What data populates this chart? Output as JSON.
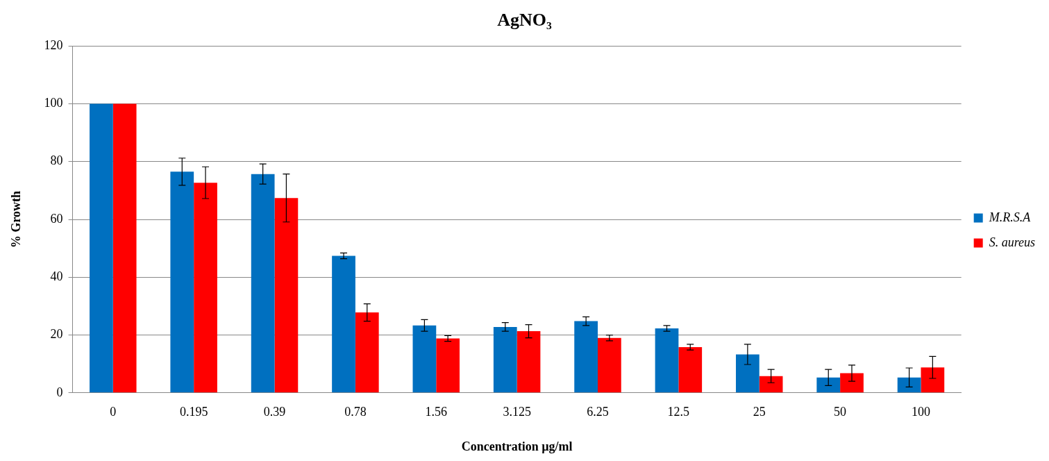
{
  "chart_data": {
    "type": "bar",
    "title": "AgNO₃",
    "xlabel": "Concentration µg/ml",
    "ylabel": "% Growth",
    "categories": [
      "0",
      "0.195",
      "0.39",
      "0.78",
      "1.56",
      "3.125",
      "6.25",
      "12.5",
      "25",
      "50",
      "100"
    ],
    "series": [
      {
        "name": "M.R.S.A",
        "color": "#0070c0",
        "values": [
          100,
          76.5,
          75.7,
          47.4,
          23.3,
          22.8,
          24.8,
          22.3,
          13.3,
          5.3,
          5.3
        ],
        "errors": [
          null,
          4.7,
          3.5,
          1,
          2,
          1.5,
          1.5,
          1,
          3.5,
          2.8,
          3.3
        ]
      },
      {
        "name": "S. aureus",
        "color": "#ff0000",
        "values": [
          100,
          72.7,
          67.4,
          27.8,
          18.8,
          21.3,
          19,
          15.8,
          5.8,
          6.8,
          8.8
        ],
        "errors": [
          null,
          5.5,
          8.3,
          3,
          1,
          2.3,
          1,
          1,
          2.3,
          2.8,
          3.8
        ]
      }
    ],
    "ylim": [
      0,
      120
    ],
    "yticks": [
      0,
      20,
      40,
      60,
      80,
      100,
      120
    ],
    "grid": "y",
    "legend": "right"
  }
}
